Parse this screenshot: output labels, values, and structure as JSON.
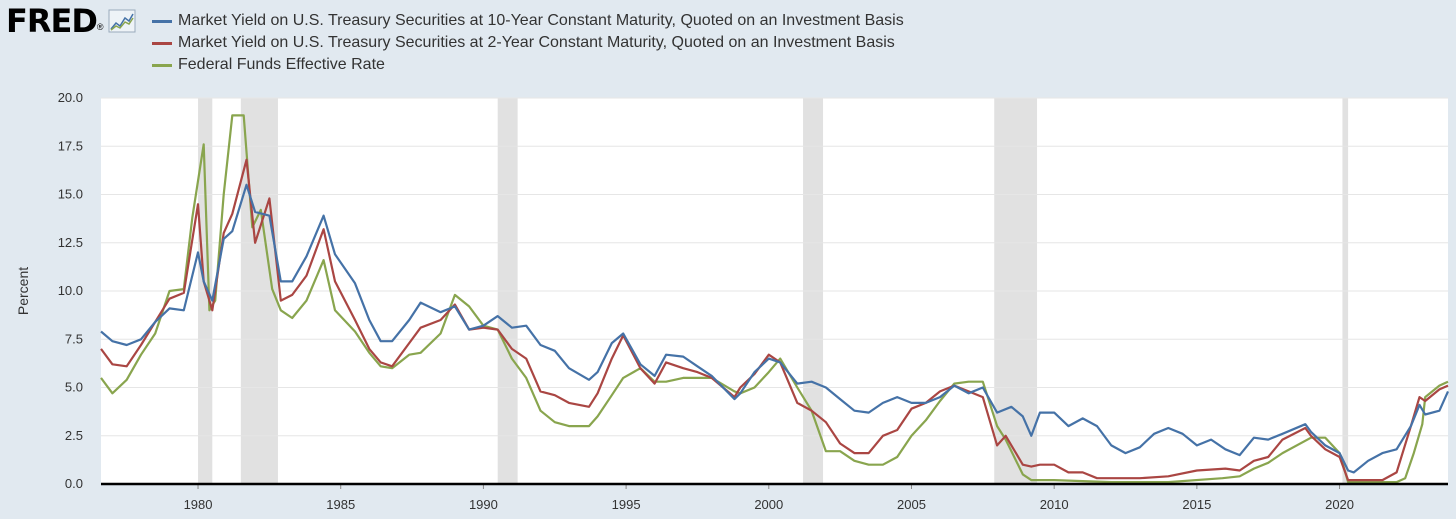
{
  "logo": {
    "text": "FRED",
    "registered": "®"
  },
  "chart_data": {
    "type": "line",
    "title": "",
    "xlabel": "",
    "ylabel": "Percent",
    "xlim": [
      1976.6,
      2023.8
    ],
    "ylim": [
      0,
      20
    ],
    "yticks": [
      "0.0",
      "2.5",
      "5.0",
      "7.5",
      "10.0",
      "12.5",
      "15.0",
      "17.5",
      "20.0"
    ],
    "xticks": [
      "1980",
      "1985",
      "1990",
      "1995",
      "2000",
      "2005",
      "2010",
      "2015",
      "2020"
    ],
    "grid": true,
    "legend_position": "top",
    "recessions": [
      [
        1980.0,
        1980.5
      ],
      [
        1981.5,
        1982.8
      ],
      [
        1990.5,
        1991.2
      ],
      [
        2001.2,
        2001.9
      ],
      [
        2007.9,
        2009.4
      ],
      [
        2020.1,
        2020.3
      ]
    ],
    "series": [
      {
        "name": "Market Yield on U.S. Treasury Securities at 10-Year Constant Maturity, Quoted on an Investment Basis",
        "color": "#4572a7",
        "x": [
          1976.6,
          1977,
          1977.5,
          1978,
          1978.5,
          1979,
          1979.5,
          1980,
          1980.2,
          1980.5,
          1980.9,
          1981.2,
          1981.7,
          1982,
          1982.5,
          1982.9,
          1983.3,
          1983.8,
          1984.4,
          1984.8,
          1985.5,
          1986,
          1986.4,
          1986.8,
          1987.4,
          1987.8,
          1988.5,
          1989,
          1989.5,
          1990,
          1990.5,
          1991,
          1991.5,
          1992,
          1992.5,
          1993,
          1993.7,
          1994,
          1994.5,
          1994.9,
          1995.5,
          1996,
          1996.4,
          1997,
          1997.5,
          1998,
          1998.8,
          1999,
          1999.5,
          2000,
          2000.4,
          2001,
          2001.5,
          2002,
          2002.5,
          2003,
          2003.5,
          2004,
          2004.5,
          2005,
          2005.5,
          2006,
          2006.5,
          2007,
          2007.5,
          2008,
          2008.5,
          2008.9,
          2009.2,
          2009.5,
          2010,
          2010.5,
          2011,
          2011.5,
          2012,
          2012.5,
          2013,
          2013.5,
          2014,
          2014.5,
          2015,
          2015.5,
          2016,
          2016.5,
          2017,
          2017.5,
          2018,
          2018.8,
          2019,
          2019.5,
          2020,
          2020.3,
          2020.5,
          2021,
          2021.5,
          2022,
          2022.5,
          2022.8,
          2023,
          2023.5,
          2023.8
        ],
        "values": [
          7.9,
          7.4,
          7.2,
          7.5,
          8.4,
          9.1,
          9.0,
          12.0,
          10.5,
          9.5,
          12.7,
          13.1,
          15.5,
          14.1,
          13.9,
          10.5,
          10.5,
          11.8,
          13.9,
          11.9,
          10.4,
          8.5,
          7.4,
          7.4,
          8.5,
          9.4,
          8.9,
          9.2,
          8.0,
          8.2,
          8.7,
          8.1,
          8.2,
          7.2,
          6.9,
          6.0,
          5.4,
          5.8,
          7.3,
          7.8,
          6.2,
          5.6,
          6.7,
          6.6,
          6.1,
          5.6,
          4.4,
          4.7,
          5.8,
          6.5,
          6.3,
          5.2,
          5.3,
          5.0,
          4.4,
          3.8,
          3.7,
          4.2,
          4.5,
          4.2,
          4.2,
          4.5,
          5.1,
          4.7,
          5.0,
          3.7,
          4.0,
          3.5,
          2.5,
          3.7,
          3.7,
          3.0,
          3.4,
          3.0,
          2.0,
          1.6,
          1.9,
          2.6,
          2.9,
          2.6,
          2.0,
          2.3,
          1.8,
          1.5,
          2.4,
          2.3,
          2.6,
          3.1,
          2.7,
          2.0,
          1.6,
          0.7,
          0.6,
          1.2,
          1.6,
          1.8,
          3.0,
          4.1,
          3.6,
          3.8,
          4.8
        ]
      },
      {
        "name": "Market Yield on U.S. Treasury Securities at 2-Year Constant Maturity, Quoted on an Investment Basis",
        "color": "#aa4643",
        "x": [
          1976.6,
          1977,
          1977.5,
          1978,
          1978.5,
          1979,
          1979.5,
          1980,
          1980.2,
          1980.5,
          1980.9,
          1981.2,
          1981.7,
          1982,
          1982.5,
          1982.9,
          1983.3,
          1983.8,
          1984.4,
          1984.8,
          1985.5,
          1986,
          1986.4,
          1986.8,
          1987.4,
          1987.8,
          1988.5,
          1989,
          1989.5,
          1990,
          1990.5,
          1991,
          1991.5,
          1992,
          1992.5,
          1993,
          1993.7,
          1994,
          1994.5,
          1994.9,
          1995.5,
          1996,
          1996.4,
          1997,
          1997.5,
          1998,
          1998.8,
          1999,
          1999.5,
          2000,
          2000.4,
          2001,
          2001.5,
          2002,
          2002.5,
          2003,
          2003.5,
          2004,
          2004.5,
          2005,
          2005.5,
          2006,
          2006.5,
          2007,
          2007.5,
          2008,
          2008.3,
          2008.9,
          2009.2,
          2009.5,
          2010,
          2010.5,
          2011,
          2011.5,
          2012,
          2013,
          2014,
          2015,
          2016,
          2016.5,
          2017,
          2017.5,
          2018,
          2018.8,
          2019,
          2019.5,
          2020,
          2020.3,
          2020.5,
          2021,
          2021.5,
          2022,
          2022.5,
          2022.8,
          2023,
          2023.5,
          2023.8
        ],
        "values": [
          7.0,
          6.2,
          6.1,
          7.2,
          8.4,
          9.6,
          9.9,
          14.5,
          10.5,
          9.0,
          13.0,
          14.0,
          16.8,
          12.5,
          14.8,
          9.5,
          9.8,
          10.8,
          13.2,
          10.5,
          8.5,
          7.0,
          6.3,
          6.1,
          7.3,
          8.1,
          8.5,
          9.3,
          8.0,
          8.1,
          8.0,
          7.0,
          6.5,
          4.8,
          4.6,
          4.2,
          4.0,
          4.7,
          6.5,
          7.7,
          6.0,
          5.2,
          6.3,
          6.0,
          5.8,
          5.5,
          4.5,
          5.0,
          5.7,
          6.7,
          6.3,
          4.2,
          3.8,
          3.2,
          2.1,
          1.6,
          1.6,
          2.5,
          2.8,
          3.9,
          4.2,
          4.8,
          5.1,
          4.8,
          4.5,
          2.0,
          2.5,
          1.0,
          0.9,
          1.0,
          1.0,
          0.6,
          0.6,
          0.3,
          0.3,
          0.3,
          0.4,
          0.7,
          0.8,
          0.7,
          1.2,
          1.4,
          2.3,
          2.9,
          2.5,
          1.8,
          1.4,
          0.2,
          0.2,
          0.2,
          0.2,
          0.6,
          3.0,
          4.5,
          4.3,
          4.9,
          5.1
        ]
      },
      {
        "name": "Federal Funds Effective Rate",
        "color": "#89a54e",
        "x": [
          1976.6,
          1977,
          1977.5,
          1978,
          1978.5,
          1979,
          1979.5,
          1979.8,
          1980.2,
          1980.4,
          1980.6,
          1980.9,
          1981.2,
          1981.6,
          1981.9,
          1982.2,
          1982.6,
          1982.9,
          1983.3,
          1983.8,
          1984.4,
          1984.8,
          1985.5,
          1986,
          1986.4,
          1986.8,
          1987.4,
          1987.8,
          1988.5,
          1989,
          1989.5,
          1990,
          1990.5,
          1991,
          1991.5,
          1992,
          1992.5,
          1993,
          1993.7,
          1994,
          1994.5,
          1994.9,
          1995.5,
          1996,
          1996.4,
          1997,
          1997.5,
          1998,
          1998.8,
          1999,
          1999.5,
          2000,
          2000.4,
          2001,
          2001.5,
          2002,
          2002.5,
          2003,
          2003.5,
          2004,
          2004.5,
          2005,
          2005.5,
          2006,
          2006.5,
          2007,
          2007.5,
          2008,
          2008.3,
          2008.9,
          2009.2,
          2009.5,
          2010,
          2012,
          2014,
          2015.9,
          2016.5,
          2017,
          2017.5,
          2018,
          2019,
          2019.5,
          2020,
          2020.3,
          2021,
          2022,
          2022.3,
          2022.6,
          2022.9,
          2023,
          2023.5,
          2023.8
        ],
        "values": [
          5.5,
          4.7,
          5.4,
          6.7,
          7.8,
          10.0,
          10.1,
          13.8,
          17.6,
          9.0,
          9.5,
          15.0,
          19.1,
          19.1,
          13.3,
          14.2,
          10.1,
          9.0,
          8.6,
          9.5,
          11.6,
          9.0,
          7.9,
          6.8,
          6.1,
          6.0,
          6.7,
          6.8,
          7.8,
          9.8,
          9.2,
          8.2,
          8.0,
          6.5,
          5.5,
          3.8,
          3.2,
          3.0,
          3.0,
          3.5,
          4.6,
          5.5,
          6.0,
          5.3,
          5.3,
          5.5,
          5.5,
          5.5,
          4.8,
          4.7,
          5.0,
          5.8,
          6.5,
          5.0,
          3.8,
          1.7,
          1.7,
          1.2,
          1.0,
          1.0,
          1.4,
          2.5,
          3.3,
          4.3,
          5.2,
          5.3,
          5.3,
          3.0,
          2.3,
          0.5,
          0.2,
          0.2,
          0.2,
          0.1,
          0.1,
          0.3,
          0.4,
          0.8,
          1.1,
          1.6,
          2.4,
          2.4,
          1.6,
          0.1,
          0.1,
          0.1,
          0.3,
          1.6,
          3.1,
          4.5,
          5.1,
          5.3
        ]
      }
    ]
  }
}
